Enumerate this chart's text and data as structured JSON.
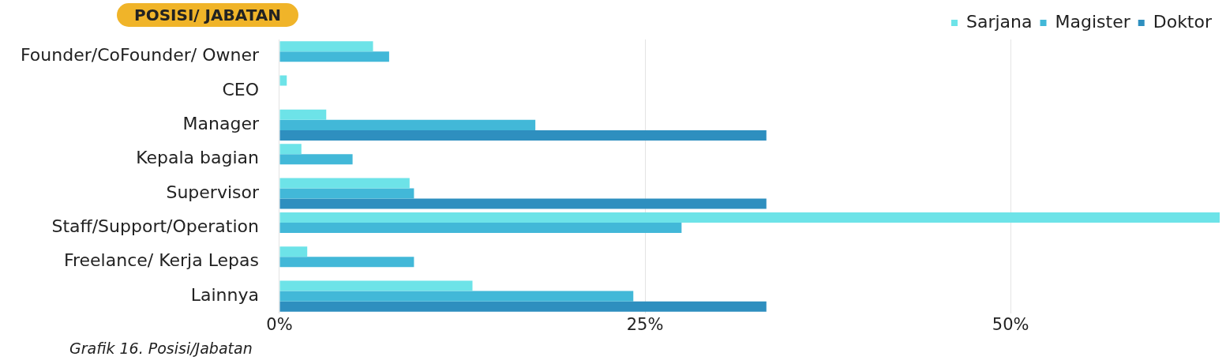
{
  "chart_data": {
    "type": "bar",
    "orientation": "horizontal",
    "title": "POSISI/ JABATAN",
    "categories": [
      "Founder/CoFounder/ Owner",
      "CEO",
      "Manager",
      "Kepala bagian",
      "Supervisor",
      "Staff/Support/Operation",
      "Freelance/ Kerja Lepas",
      "Lainnya"
    ],
    "series": [
      {
        "name": "Sarjana",
        "color": "#6de3e8",
        "values": [
          6.4,
          0.5,
          3.2,
          1.5,
          8.9,
          64.3,
          1.9,
          13.2
        ]
      },
      {
        "name": "Magister",
        "color": "#42b8d8",
        "values": [
          7.5,
          null,
          17.5,
          5.0,
          9.2,
          27.5,
          9.2,
          24.2
        ]
      },
      {
        "name": "Doktor",
        "color": "#2e8fbf",
        "values": [
          null,
          null,
          33.3,
          null,
          33.3,
          null,
          null,
          33.3
        ]
      }
    ],
    "xlim": [
      0,
      64.3
    ],
    "xticks": [
      {
        "value": 0,
        "label": "0%"
      },
      {
        "value": 25,
        "label": "25%"
      },
      {
        "value": 50,
        "label": "50%"
      }
    ],
    "grid": "x",
    "legend": "top right",
    "annotations": [
      "Grafik 16. Posisi/Jabatan"
    ]
  }
}
